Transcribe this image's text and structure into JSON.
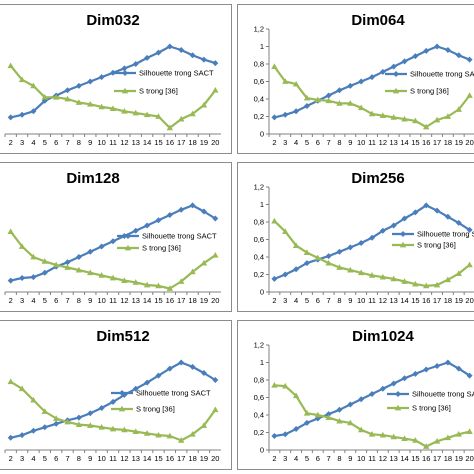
{
  "colors": {
    "silhouette": "#4a7ebb",
    "s_strong": "#98b954",
    "grid": "#d9d9d9",
    "frame": "#8c8c8c"
  },
  "chart_data": [
    {
      "type": "line",
      "title": "Dim032",
      "x": [
        2,
        3,
        4,
        5,
        6,
        7,
        8,
        9,
        10,
        11,
        12,
        13,
        14,
        15,
        16,
        17,
        18,
        19,
        20
      ],
      "ylim": [
        0,
        1.2
      ],
      "yticks": [],
      "grid": false,
      "legend": "right",
      "series": [
        {
          "name": "Silhouette trong SACT",
          "values": [
            0.19,
            0.22,
            0.26,
            0.38,
            0.44,
            0.5,
            0.55,
            0.6,
            0.65,
            0.7,
            0.75,
            0.8,
            0.87,
            0.93,
            1.0,
            0.96,
            0.9,
            0.85,
            0.81
          ]
        },
        {
          "name": "S trong [36]",
          "values": [
            0.78,
            0.62,
            0.55,
            0.42,
            0.42,
            0.4,
            0.36,
            0.34,
            0.31,
            0.29,
            0.26,
            0.24,
            0.22,
            0.2,
            0.07,
            0.17,
            0.23,
            0.33,
            0.5
          ]
        }
      ]
    },
    {
      "type": "line",
      "title": "Dim064",
      "x": [
        2,
        3,
        4,
        5,
        6,
        7,
        8,
        9,
        10,
        11,
        12,
        13,
        14,
        15,
        16,
        17,
        18,
        19,
        20
      ],
      "ylim": [
        0,
        1.2
      ],
      "yticks": [
        "0",
        "0,2",
        "0,4",
        "0,6",
        "0,8",
        "1",
        "1,2"
      ],
      "grid": false,
      "legend": "right",
      "series": [
        {
          "name": "Silhouette trong SACT",
          "values": [
            0.19,
            0.22,
            0.26,
            0.32,
            0.38,
            0.44,
            0.5,
            0.55,
            0.6,
            0.65,
            0.71,
            0.77,
            0.83,
            0.89,
            0.95,
            1.0,
            0.96,
            0.9,
            0.85
          ]
        },
        {
          "name": "S trong [36]",
          "values": [
            0.77,
            0.6,
            0.57,
            0.41,
            0.39,
            0.38,
            0.35,
            0.35,
            0.3,
            0.23,
            0.21,
            0.19,
            0.17,
            0.15,
            0.08,
            0.16,
            0.2,
            0.28,
            0.44
          ]
        }
      ]
    },
    {
      "type": "line",
      "title": "Dim128",
      "x": [
        2,
        3,
        4,
        5,
        6,
        7,
        8,
        9,
        10,
        11,
        12,
        13,
        14,
        15,
        16,
        17,
        18,
        19,
        20
      ],
      "ylim": [
        0,
        1.2
      ],
      "yticks": [],
      "grid": false,
      "legend": "right",
      "series": [
        {
          "name": "Silhouette trong SACT",
          "values": [
            0.13,
            0.16,
            0.17,
            0.22,
            0.29,
            0.34,
            0.4,
            0.46,
            0.52,
            0.58,
            0.64,
            0.7,
            0.76,
            0.82,
            0.88,
            0.94,
            0.99,
            0.92,
            0.84
          ]
        },
        {
          "name": "S trong [36]",
          "values": [
            0.69,
            0.52,
            0.4,
            0.35,
            0.31,
            0.28,
            0.25,
            0.22,
            0.19,
            0.16,
            0.13,
            0.11,
            0.08,
            0.07,
            0.04,
            0.12,
            0.23,
            0.33,
            0.42
          ]
        }
      ]
    },
    {
      "type": "line",
      "title": "Dim256",
      "x": [
        2,
        3,
        4,
        5,
        6,
        7,
        8,
        9,
        10,
        11,
        12,
        13,
        14,
        15,
        16,
        17,
        18,
        19,
        20
      ],
      "ylim": [
        0,
        1.2
      ],
      "yticks": [
        "0",
        "0,2",
        "0,4",
        "0,6",
        "0,8",
        "1",
        "1,2"
      ],
      "grid": false,
      "legend": "right",
      "series": [
        {
          "name": "Silhouette trong SACT",
          "values": [
            0.15,
            0.2,
            0.26,
            0.33,
            0.37,
            0.41,
            0.46,
            0.51,
            0.56,
            0.62,
            0.7,
            0.76,
            0.84,
            0.91,
            0.99,
            0.93,
            0.86,
            0.79,
            0.71
          ]
        },
        {
          "name": "S trong [36]",
          "values": [
            0.81,
            0.69,
            0.53,
            0.45,
            0.39,
            0.33,
            0.28,
            0.25,
            0.22,
            0.19,
            0.17,
            0.15,
            0.12,
            0.09,
            0.07,
            0.08,
            0.14,
            0.21,
            0.31
          ]
        }
      ]
    },
    {
      "type": "line",
      "title": "Dim512",
      "x": [
        2,
        3,
        4,
        5,
        6,
        7,
        8,
        9,
        10,
        11,
        12,
        13,
        14,
        15,
        16,
        17,
        18,
        19,
        20
      ],
      "ylim": [
        0,
        1.2
      ],
      "yticks": [],
      "grid": false,
      "legend": "right",
      "series": [
        {
          "name": "Silhouette trong SACT",
          "values": [
            0.14,
            0.17,
            0.22,
            0.26,
            0.3,
            0.34,
            0.37,
            0.42,
            0.48,
            0.55,
            0.63,
            0.7,
            0.77,
            0.85,
            0.93,
            1.0,
            0.95,
            0.88,
            0.8
          ]
        },
        {
          "name": "S trong [36]",
          "values": [
            0.78,
            0.7,
            0.57,
            0.44,
            0.36,
            0.32,
            0.29,
            0.28,
            0.26,
            0.24,
            0.23,
            0.21,
            0.19,
            0.17,
            0.16,
            0.11,
            0.18,
            0.28,
            0.46
          ]
        }
      ]
    },
    {
      "type": "line",
      "title": "Dim1024",
      "x": [
        2,
        3,
        4,
        5,
        6,
        7,
        8,
        9,
        10,
        11,
        12,
        13,
        14,
        15,
        16,
        17,
        18,
        19,
        20
      ],
      "ylim": [
        0,
        1.2
      ],
      "yticks": [
        "0",
        "0,2",
        "0,4",
        "0,6",
        "0,8",
        "1",
        "1,2"
      ],
      "grid": false,
      "legend": "right",
      "series": [
        {
          "name": "Silhouette trong SACT",
          "values": [
            0.16,
            0.18,
            0.24,
            0.31,
            0.36,
            0.41,
            0.46,
            0.52,
            0.58,
            0.64,
            0.7,
            0.76,
            0.82,
            0.87,
            0.92,
            0.96,
            1.0,
            0.93,
            0.85
          ]
        },
        {
          "name": "S trong [36]",
          "values": [
            0.74,
            0.73,
            0.62,
            0.42,
            0.4,
            0.37,
            0.33,
            0.31,
            0.23,
            0.18,
            0.17,
            0.15,
            0.13,
            0.11,
            0.04,
            0.1,
            0.14,
            0.18,
            0.21
          ]
        }
      ]
    }
  ]
}
